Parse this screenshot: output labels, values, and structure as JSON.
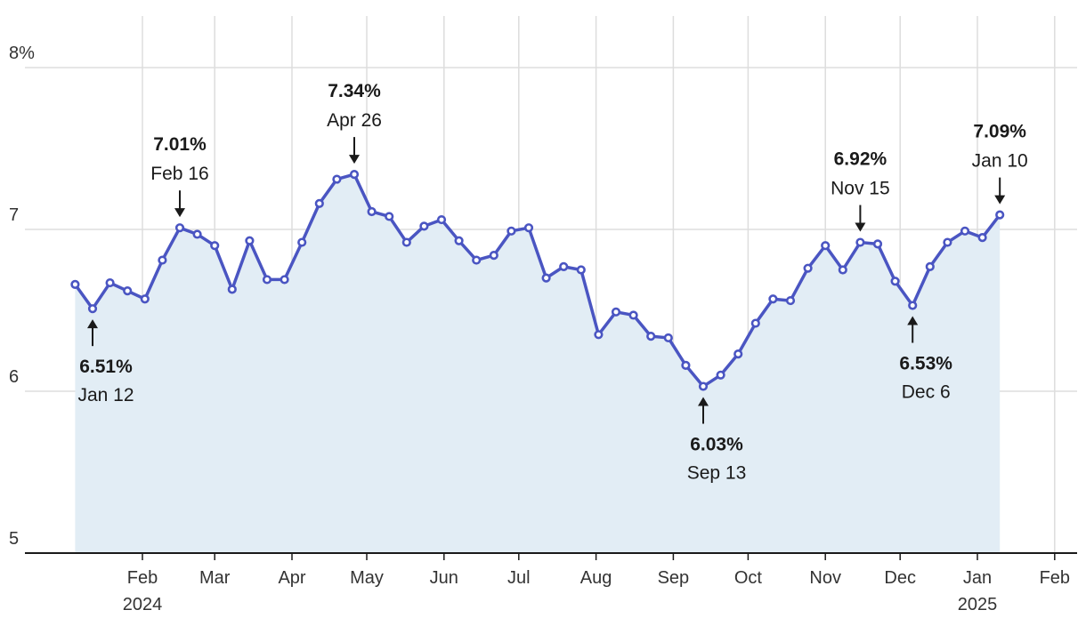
{
  "chart_data": {
    "type": "area",
    "title": "",
    "xlabel": "",
    "ylabel": "",
    "ylim": [
      5,
      8
    ],
    "y_ticks": [
      {
        "value": 8,
        "label": "8%"
      },
      {
        "value": 7,
        "label": "7"
      },
      {
        "value": 6,
        "label": "6"
      },
      {
        "value": 5,
        "label": "5"
      }
    ],
    "x_range": [
      "2024-01-01",
      "2025-02-08"
    ],
    "x_ticks": [
      {
        "date": "2024-02-01",
        "label": "Feb",
        "year": "2024"
      },
      {
        "date": "2024-03-01",
        "label": "Mar",
        "year": ""
      },
      {
        "date": "2024-04-01",
        "label": "Apr",
        "year": ""
      },
      {
        "date": "2024-05-01",
        "label": "May",
        "year": ""
      },
      {
        "date": "2024-06-01",
        "label": "Jun",
        "year": ""
      },
      {
        "date": "2024-07-01",
        "label": "Jul",
        "year": ""
      },
      {
        "date": "2024-08-01",
        "label": "Aug",
        "year": ""
      },
      {
        "date": "2024-09-01",
        "label": "Sep",
        "year": ""
      },
      {
        "date": "2024-10-01",
        "label": "Oct",
        "year": ""
      },
      {
        "date": "2024-11-01",
        "label": "Nov",
        "year": ""
      },
      {
        "date": "2024-12-01",
        "label": "Dec",
        "year": ""
      },
      {
        "date": "2025-01-01",
        "label": "Jan",
        "year": "2025"
      },
      {
        "date": "2025-02-01",
        "label": "Feb",
        "year": ""
      }
    ],
    "grid": true,
    "colors": {
      "line": "#4a55c2",
      "fill": "#e2edf5",
      "grid": "#dddddd",
      "axis": "#1a1a1a"
    },
    "series": [
      {
        "x": [
          "2024-01-05",
          "2024-01-12",
          "2024-01-19",
          "2024-01-26",
          "2024-02-02",
          "2024-02-09",
          "2024-02-16",
          "2024-02-23",
          "2024-03-01",
          "2024-03-08",
          "2024-03-15",
          "2024-03-22",
          "2024-03-29",
          "2024-04-05",
          "2024-04-12",
          "2024-04-19",
          "2024-04-26",
          "2024-05-03",
          "2024-05-10",
          "2024-05-17",
          "2024-05-24",
          "2024-05-31",
          "2024-06-07",
          "2024-06-14",
          "2024-06-21",
          "2024-06-28",
          "2024-07-05",
          "2024-07-12",
          "2024-07-19",
          "2024-07-26",
          "2024-08-02",
          "2024-08-09",
          "2024-08-16",
          "2024-08-23",
          "2024-08-30",
          "2024-09-06",
          "2024-09-13",
          "2024-09-20",
          "2024-09-27",
          "2024-10-04",
          "2024-10-11",
          "2024-10-18",
          "2024-10-25",
          "2024-11-01",
          "2024-11-08",
          "2024-11-15",
          "2024-11-22",
          "2024-11-29",
          "2024-12-06",
          "2024-12-13",
          "2024-12-20",
          "2024-12-27",
          "2025-01-03",
          "2025-01-10"
        ],
        "values": [
          6.66,
          6.51,
          6.67,
          6.62,
          6.57,
          6.81,
          7.01,
          6.97,
          6.9,
          6.63,
          6.93,
          6.69,
          6.69,
          6.92,
          7.16,
          7.31,
          7.34,
          7.11,
          7.08,
          6.92,
          7.02,
          7.06,
          6.93,
          6.81,
          6.84,
          6.99,
          7.01,
          6.7,
          6.77,
          6.75,
          6.35,
          6.49,
          6.47,
          6.34,
          6.33,
          6.16,
          6.03,
          6.1,
          6.23,
          6.42,
          6.57,
          6.56,
          6.76,
          6.9,
          6.75,
          6.92,
          6.91,
          6.68,
          6.53,
          6.77,
          6.92,
          6.99,
          6.95,
          7.09
        ]
      }
    ],
    "annotations": [
      {
        "date": "2024-01-12",
        "value": 6.51,
        "value_label": "6.51%",
        "date_label": "Jan 12",
        "position": "below"
      },
      {
        "date": "2024-02-16",
        "value": 7.01,
        "value_label": "7.01%",
        "date_label": "Feb 16",
        "position": "above"
      },
      {
        "date": "2024-04-26",
        "value": 7.34,
        "value_label": "7.34%",
        "date_label": "Apr 26",
        "position": "above"
      },
      {
        "date": "2024-09-13",
        "value": 6.03,
        "value_label": "6.03%",
        "date_label": "Sep 13",
        "position": "below"
      },
      {
        "date": "2024-11-15",
        "value": 6.92,
        "value_label": "6.92%",
        "date_label": "Nov 15",
        "position": "above"
      },
      {
        "date": "2024-12-06",
        "value": 6.53,
        "value_label": "6.53%",
        "date_label": "Dec 6",
        "position": "below"
      },
      {
        "date": "2025-01-10",
        "value": 7.09,
        "value_label": "7.09%",
        "date_label": "Jan 10",
        "position": "above"
      }
    ]
  }
}
